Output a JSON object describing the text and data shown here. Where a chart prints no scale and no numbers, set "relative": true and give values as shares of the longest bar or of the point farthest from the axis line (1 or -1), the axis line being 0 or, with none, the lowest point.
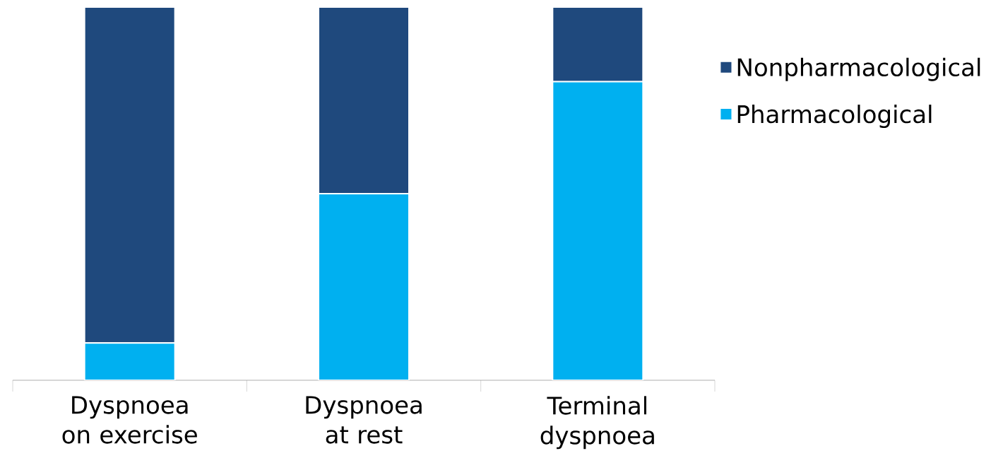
{
  "chart_data": {
    "type": "bar",
    "stacked": true,
    "relative": true,
    "categories": [
      "Dyspnoea on exercise",
      "Dyspnoea at rest",
      "Terminal dyspnoea"
    ],
    "legend": "right",
    "series": [
      {
        "name": "Pharmacological",
        "color": "#00b0f0",
        "values": [
          0.1,
          0.5,
          0.8
        ]
      },
      {
        "name": "Nonpharmacological",
        "color": "#1f497d",
        "values": [
          0.9,
          0.5,
          0.2
        ]
      }
    ]
  }
}
